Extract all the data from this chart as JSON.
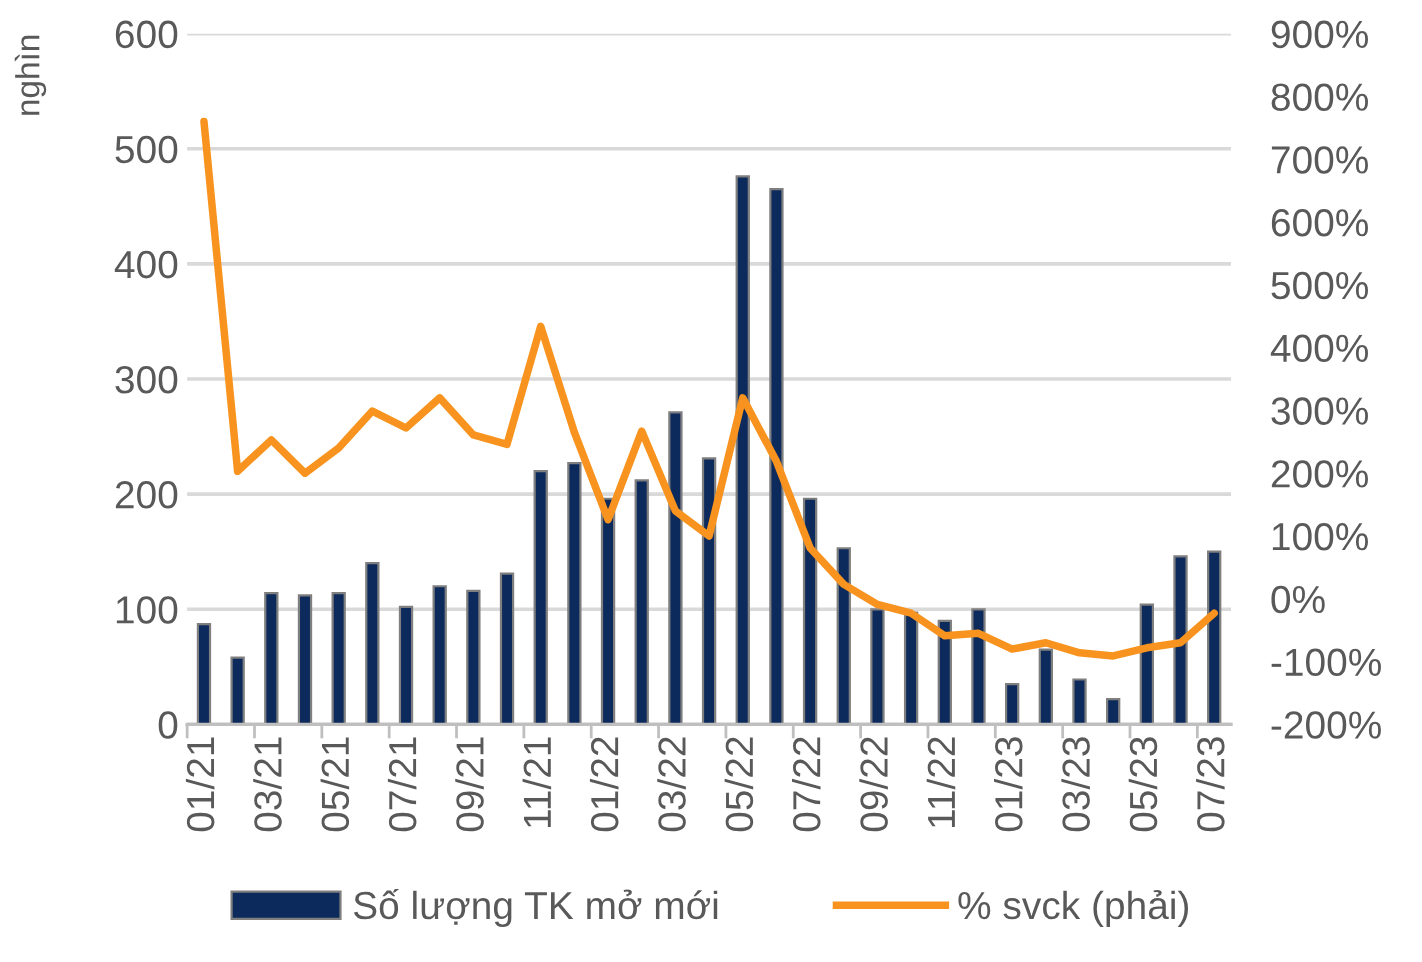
{
  "chart_data": {
    "type": "bar",
    "ylabel": "nghìn",
    "categories": [
      "01/21",
      null,
      "03/21",
      null,
      "05/21",
      null,
      "07/21",
      null,
      "09/21",
      null,
      "11/21",
      null,
      "01/22",
      null,
      "03/22",
      null,
      "05/22",
      null,
      "07/22",
      null,
      "09/22",
      null,
      "11/22",
      null,
      "01/23",
      null,
      "03/23",
      null,
      "05/23",
      null,
      "07/23"
    ],
    "series": [
      {
        "name": "Số lượng TK mở mới",
        "color": "#0c2a5b",
        "values": [
          87,
          58,
          114,
          112,
          114,
          140,
          102,
          120,
          116,
          131,
          220,
          227,
          196,
          212,
          271,
          231,
          476,
          465,
          196,
          153,
          100,
          97,
          90,
          100,
          35,
          65,
          39,
          22,
          104,
          146,
          150
        ]
      },
      {
        "name": "% svck (phải)",
        "type": "line",
        "axis": "y2",
        "color": "#f7931e",
        "values": [
          760,
          203,
          253,
          200,
          240,
          299,
          272,
          320,
          261,
          246,
          434,
          265,
          126,
          267,
          140,
          100,
          320,
          219,
          81,
          23,
          -9,
          -23,
          -59,
          -55,
          -80,
          -70,
          -86,
          -91,
          -78,
          -70,
          -23
        ]
      }
    ],
    "ylim": [
      0,
      600
    ],
    "yticks": [
      0,
      100,
      200,
      300,
      400,
      500,
      600
    ],
    "y2lim": [
      -200,
      900
    ],
    "y2ticks": [
      {
        "value": -200,
        "label": "-200%"
      },
      {
        "value": -100,
        "label": "-100%"
      },
      {
        "value": 0,
        "label": "0%"
      },
      {
        "value": 100,
        "label": "100%"
      },
      {
        "value": 200,
        "label": "200%"
      },
      {
        "value": 300,
        "label": "300%"
      },
      {
        "value": 400,
        "label": "400%"
      },
      {
        "value": 500,
        "label": "500%"
      },
      {
        "value": 600,
        "label": "600%"
      },
      {
        "value": 700,
        "label": "700%"
      },
      {
        "value": 800,
        "label": "800%"
      },
      {
        "value": 900,
        "label": "900%"
      }
    ],
    "grid": "y",
    "legend": "bottom",
    "line_style": "solid"
  }
}
